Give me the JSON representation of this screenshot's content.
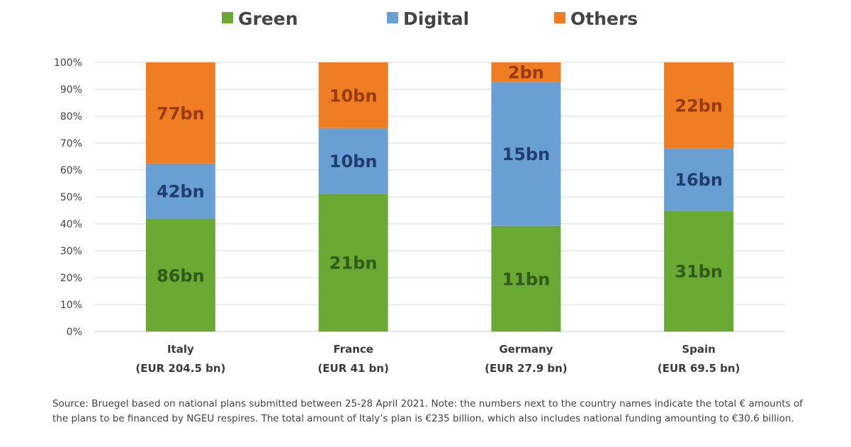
{
  "chart_data": {
    "type": "bar",
    "stacked": true,
    "normalized": true,
    "categories": [
      "Italy",
      "France",
      "Germany",
      "Spain"
    ],
    "category_subtitles": [
      "(EUR 204.5 bn)",
      "(EUR 41 bn)",
      "(EUR 27.9 bn)",
      "(EUR 69.5 bn)"
    ],
    "series": [
      {
        "name": "Green",
        "color": "#6aaa34",
        "label_color": "#2f5a1a",
        "values": [
          86,
          21,
          11,
          31
        ],
        "labels": [
          "86bn",
          "21bn",
          "11bn",
          "31bn"
        ]
      },
      {
        "name": "Digital",
        "color": "#6a9fd4",
        "label_color": "#1f3e6e",
        "values": [
          42,
          10,
          15,
          16
        ],
        "labels": [
          "42bn",
          "10bn",
          "15bn",
          "16bn"
        ]
      },
      {
        "name": "Others",
        "color": "#ee7d23",
        "label_color": "#9a3a10",
        "values": [
          77,
          10,
          2,
          22
        ],
        "labels": [
          "77bn",
          "10bn",
          "2bn",
          "22bn"
        ]
      }
    ],
    "ylim": [
      0,
      100
    ],
    "yticks": [
      "0%",
      "10%",
      "20%",
      "30%",
      "40%",
      "50%",
      "60%",
      "70%",
      "80%",
      "90%",
      "100%"
    ],
    "grid": true,
    "legend_position": "top",
    "xlabel": "",
    "ylabel": ""
  },
  "footnote": "Source: Bruegel based on national plans submitted between 25-28 April 2021. Note: the numbers next to the country names indicate the total € amounts of the plans to be financed by NGEU respires. The total amount of Italy’s plan is €235 billion, which also includes national funding amounting to €30.6 billion."
}
